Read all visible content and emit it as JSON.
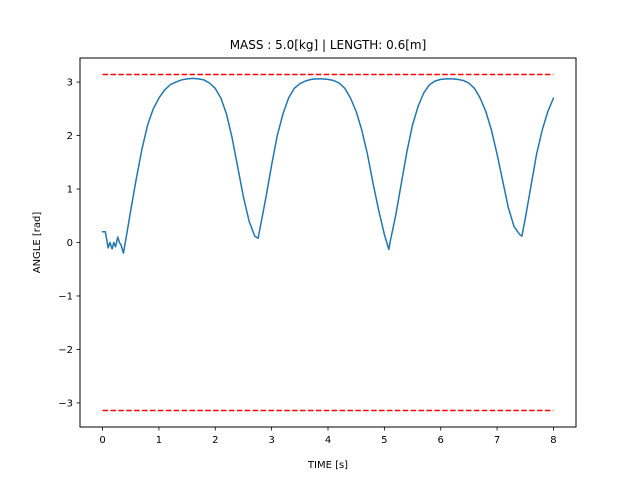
{
  "chart_data": {
    "type": "line",
    "title": "MASS : 5.0[kg] | LENGTH: 0.6[m]",
    "xlabel": "TIME [s]",
    "ylabel": "ANGLE [rad]",
    "xlim": [
      -0.4,
      8.4
    ],
    "ylim": [
      -3.45,
      3.45
    ],
    "xticks": [
      0,
      1,
      2,
      3,
      4,
      5,
      6,
      7,
      8
    ],
    "yticks": [
      -3,
      -2,
      -1,
      0,
      1,
      2,
      3
    ],
    "ytick_labels": [
      "−3",
      "−2",
      "−1",
      "0",
      "1",
      "2",
      "3"
    ],
    "grid": false,
    "series": [
      {
        "color": "#1f77b4",
        "style": "solid",
        "x": [
          0.0,
          0.05,
          0.1,
          0.13,
          0.17,
          0.2,
          0.23,
          0.27,
          0.3,
          0.33,
          0.37,
          0.42,
          0.5,
          0.6,
          0.7,
          0.8,
          0.9,
          1.0,
          1.1,
          1.2,
          1.3,
          1.4,
          1.5,
          1.6,
          1.7,
          1.8,
          1.9,
          2.0,
          2.1,
          2.2,
          2.3,
          2.4,
          2.5,
          2.6,
          2.7,
          2.76,
          2.8,
          2.9,
          3.0,
          3.1,
          3.2,
          3.3,
          3.4,
          3.5,
          3.6,
          3.7,
          3.8,
          3.9,
          4.0,
          4.1,
          4.2,
          4.3,
          4.4,
          4.5,
          4.6,
          4.7,
          4.8,
          4.9,
          5.0,
          5.08,
          5.1,
          5.2,
          5.3,
          5.4,
          5.5,
          5.6,
          5.7,
          5.8,
          5.9,
          6.0,
          6.1,
          6.2,
          6.3,
          6.4,
          6.5,
          6.6,
          6.7,
          6.8,
          6.9,
          7.0,
          7.1,
          7.2,
          7.3,
          7.4,
          7.44,
          7.5,
          7.6,
          7.7,
          7.8,
          7.9,
          8.0
        ],
        "values": [
          0.2,
          0.2,
          -0.1,
          0.0,
          -0.12,
          0.0,
          -0.08,
          0.1,
          0.0,
          -0.05,
          -0.2,
          0.1,
          0.6,
          1.2,
          1.75,
          2.2,
          2.5,
          2.7,
          2.85,
          2.95,
          3.0,
          3.04,
          3.06,
          3.07,
          3.06,
          3.04,
          2.98,
          2.88,
          2.7,
          2.4,
          1.95,
          1.4,
          0.85,
          0.4,
          0.12,
          0.08,
          0.3,
          0.85,
          1.45,
          2.0,
          2.4,
          2.7,
          2.88,
          2.97,
          3.02,
          3.05,
          3.06,
          3.06,
          3.05,
          3.03,
          2.98,
          2.88,
          2.7,
          2.45,
          2.1,
          1.65,
          1.1,
          0.6,
          0.15,
          -0.13,
          0.0,
          0.5,
          1.1,
          1.7,
          2.2,
          2.55,
          2.8,
          2.95,
          3.02,
          3.05,
          3.06,
          3.06,
          3.05,
          3.03,
          2.98,
          2.88,
          2.7,
          2.45,
          2.1,
          1.65,
          1.15,
          0.65,
          0.3,
          0.15,
          0.12,
          0.45,
          1.05,
          1.65,
          2.1,
          2.45,
          2.7
        ]
      },
      {
        "color": "#ff0000",
        "style": "dashed",
        "x": [
          0,
          8
        ],
        "values": [
          3.14159,
          3.14159
        ]
      },
      {
        "color": "#ff0000",
        "style": "dashed",
        "x": [
          0,
          8
        ],
        "values": [
          -3.14159,
          -3.14159
        ]
      }
    ]
  }
}
